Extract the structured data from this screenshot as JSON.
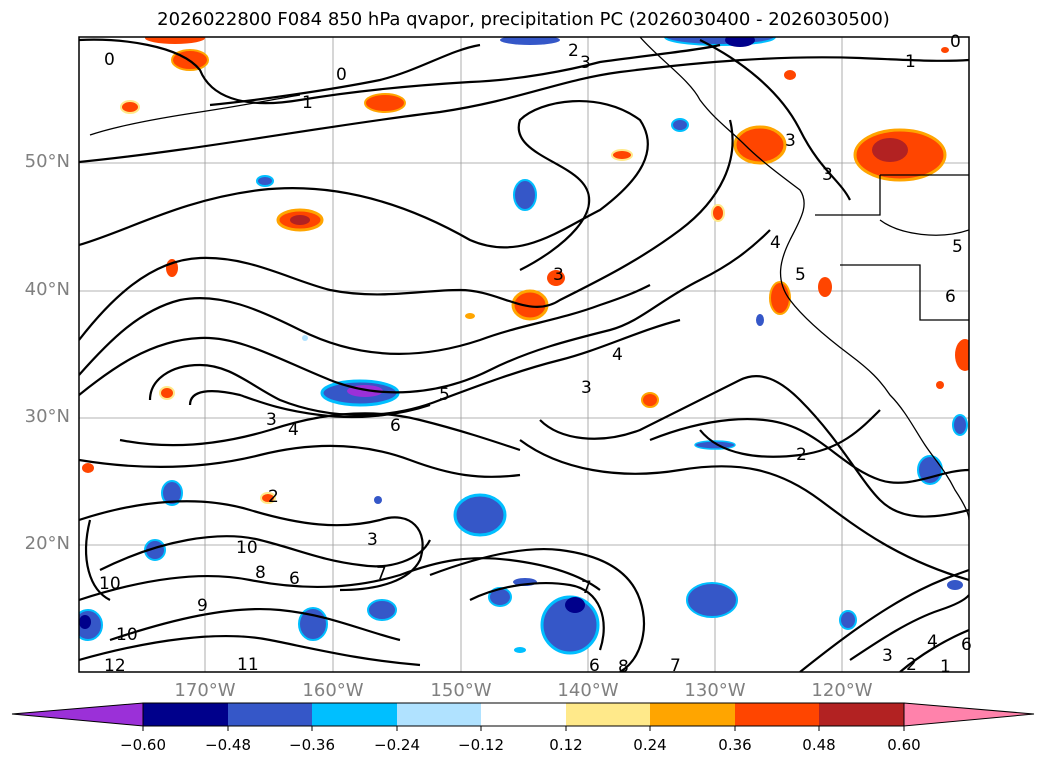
{
  "title": "2026022800 F084 850 hPa qvapor, precipitation PC (2026030400 - 2026030500)",
  "lat_labels": [
    "50°N",
    "40°N",
    "30°N",
    "20°N"
  ],
  "lon_labels": [
    "170°W",
    "160°W",
    "150°W",
    "140°W",
    "130°W",
    "120°W"
  ],
  "contour_labels": [
    "0",
    "0",
    "1",
    "2",
    "3",
    "1",
    "3",
    "3",
    "4",
    "5",
    "5",
    "4",
    "3",
    "5",
    "6",
    "2",
    "3",
    "4",
    "6",
    "3",
    "10",
    "10",
    "10",
    "11",
    "12",
    "9",
    "7",
    "8",
    "6",
    "7",
    "6",
    "8",
    "7",
    "3",
    "2",
    "4",
    "2",
    "1",
    "0",
    "3",
    "6"
  ],
  "colorbar": {
    "ticks": [
      "−0.60",
      "−0.48",
      "−0.36",
      "−0.24",
      "−0.12",
      "0.12",
      "0.24",
      "0.36",
      "0.48",
      "0.60"
    ],
    "colors": [
      "#9b30d8",
      "#00008b",
      "#3557c8",
      "#00bfff",
      "#b0e2ff",
      "#ffffff",
      "#ffe98a",
      "#ffa500",
      "#ff4500",
      "#b22222",
      "#ff82ab"
    ]
  }
}
